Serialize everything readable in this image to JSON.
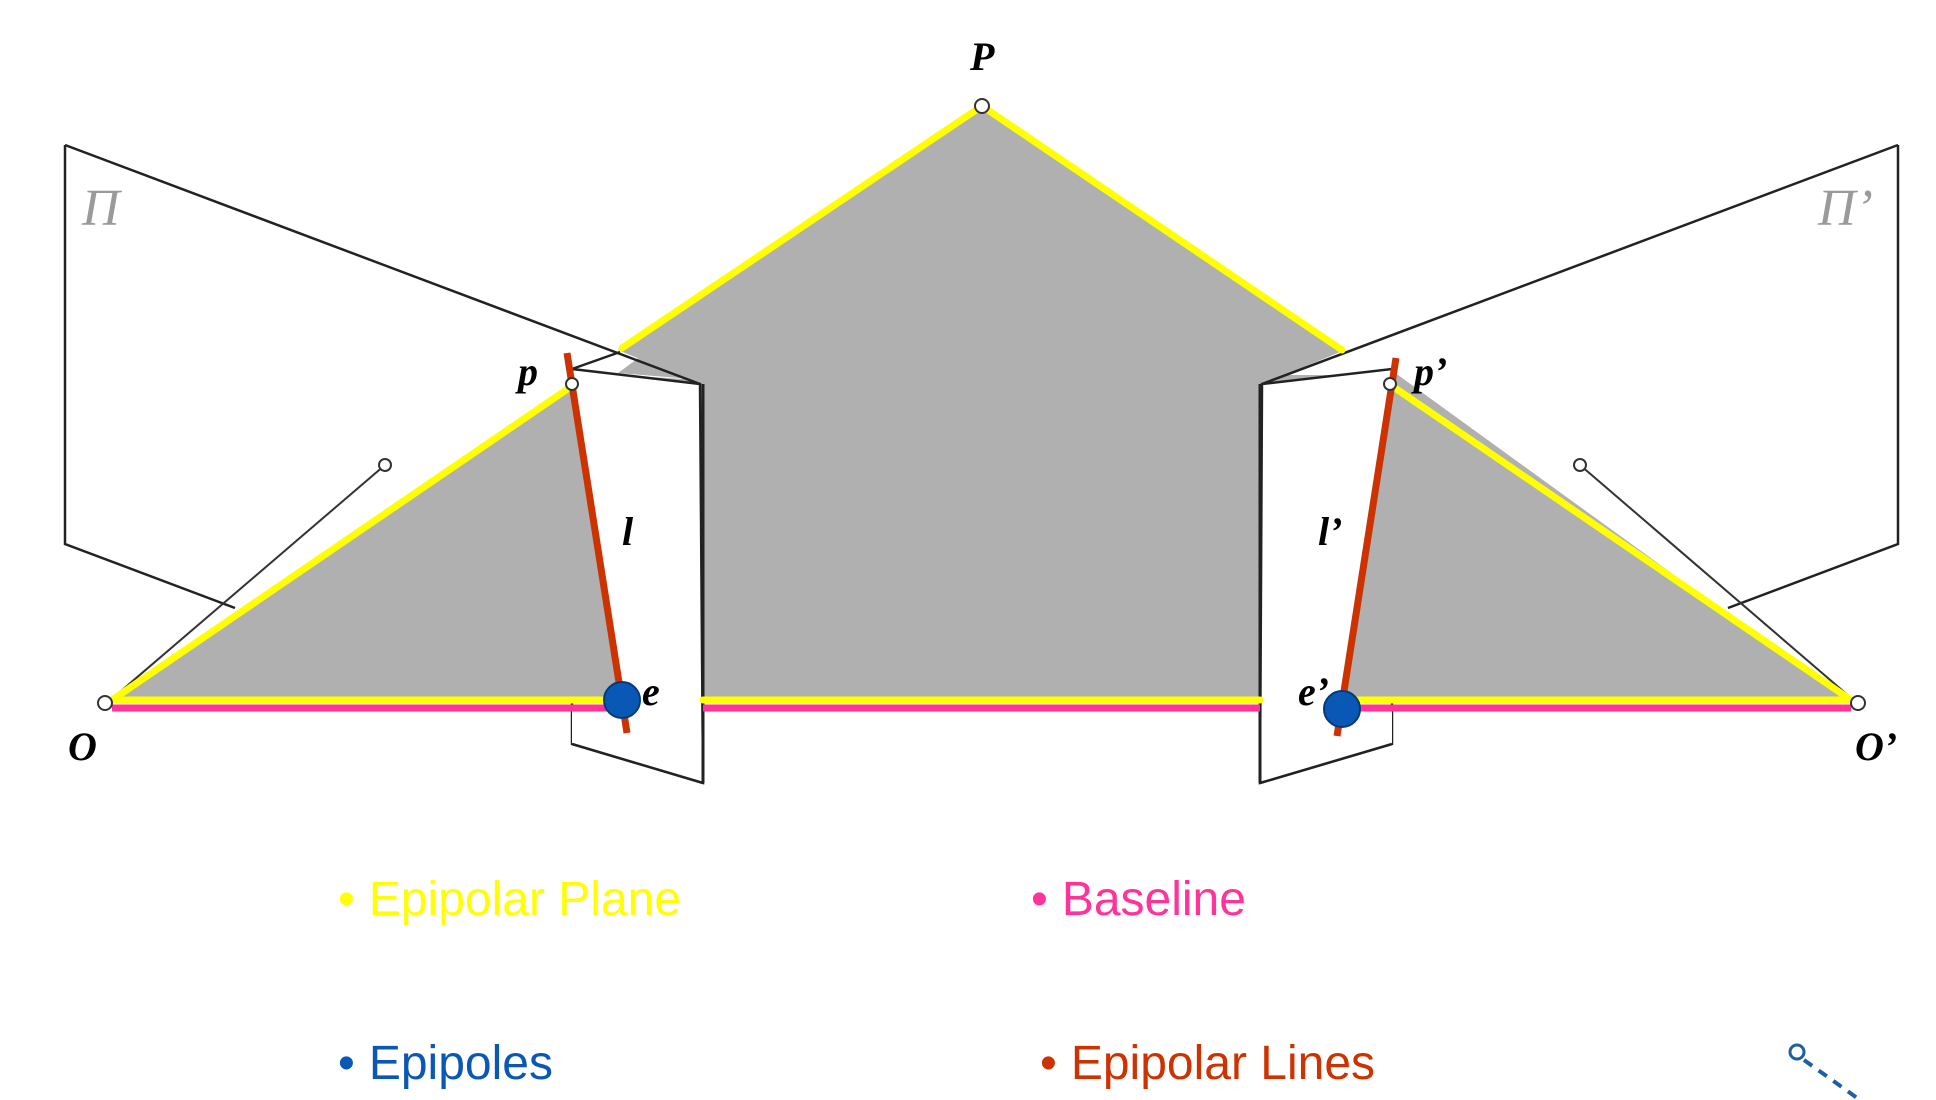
{
  "labels": {
    "P": "P",
    "p": "p",
    "p_prime": "p’",
    "l": "l",
    "l_prime": "l’",
    "e": "e",
    "e_prime": "e’",
    "O": "O",
    "O_prime": "O’",
    "plane_left": "Π",
    "plane_right": "Π’"
  },
  "legend": [
    {
      "bullet": "•",
      "text": "Epipolar Plane",
      "color": "#ffff00"
    },
    {
      "bullet": "•",
      "text": "Baseline",
      "color": "#ff3399"
    },
    {
      "bullet": "•",
      "text": "Epipoles",
      "color": "#0a58b5"
    },
    {
      "bullet": "•",
      "text": "Epipolar Lines",
      "color": "#cc3300"
    }
  ],
  "colors": {
    "epipolar_plane": "#ffff00",
    "baseline": "#ff3399",
    "epipoles": "#0a58b5",
    "epipolar_lines": "#cc3300",
    "plane_fill": "#b0b0b0"
  },
  "icons": [
    "dashed-arrow-icon"
  ]
}
